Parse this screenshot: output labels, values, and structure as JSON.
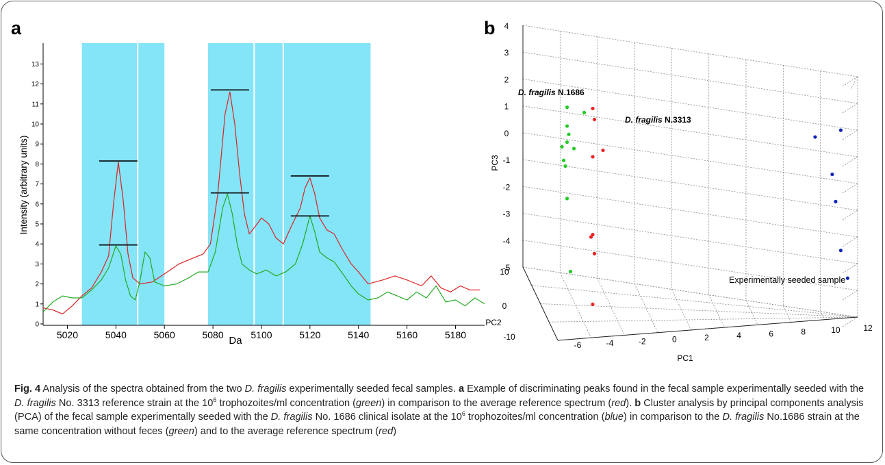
{
  "panel_a": {
    "label": "a",
    "xlabel": "Da",
    "ylabel": "Intensity (arbitrary units)",
    "x_ticks": [
      "5020",
      "5040",
      "5060",
      "5080",
      "5100",
      "5120",
      "5140",
      "5160",
      "5180"
    ],
    "y_ticks": [
      "0",
      "1",
      "2",
      "3",
      "4",
      "5",
      "6",
      "7",
      "8",
      "9",
      "10",
      "11",
      "12",
      "13"
    ]
  },
  "panel_b": {
    "label": "b",
    "pc3_label": "PC3",
    "pc2_label": "PC2",
    "pc1_label": "PC1",
    "pc3_ticks": [
      "4",
      "3",
      "2",
      "1",
      "0",
      "-1",
      "-2",
      "-3",
      "-4",
      "-5"
    ],
    "pc2_ticks": [
      "10",
      "0",
      "-10"
    ],
    "pc1_ticks": [
      "-6",
      "-4",
      "-2",
      "0",
      "2",
      "4",
      "6",
      "8",
      "10",
      "12"
    ],
    "annotation_1686_italic": "D. fragilis",
    "annotation_1686_rest": " N.1686",
    "annotation_3313_italic": "D. fragilis",
    "annotation_3313_rest": " N.3313",
    "annotation_seeded": "Experimentally seeded sample"
  },
  "chart_data": [
    {
      "type": "line",
      "panel": "a",
      "xlabel": "Da",
      "ylabel": "Intensity (arbitrary units)",
      "xlim": [
        5010,
        5192
      ],
      "ylim": [
        0,
        14
      ],
      "highlighted_ranges_da": [
        [
          5026,
          5060
        ],
        [
          5078,
          5145
        ]
      ],
      "series": [
        {
          "color": "#dd2222",
          "points": [
            [
              5010,
              0.8
            ],
            [
              5014,
              0.7
            ],
            [
              5018,
              0.5
            ],
            [
              5022,
              0.9
            ],
            [
              5026,
              1.4
            ],
            [
              5030,
              1.8
            ],
            [
              5034,
              2.6
            ],
            [
              5037,
              3.4
            ],
            [
              5039,
              6.0
            ],
            [
              5041,
              8.1
            ],
            [
              5043,
              6.2
            ],
            [
              5045,
              3.5
            ],
            [
              5047,
              2.3
            ],
            [
              5050,
              2.0
            ],
            [
              5055,
              2.1
            ],
            [
              5060,
              2.5
            ],
            [
              5066,
              3.0
            ],
            [
              5072,
              3.3
            ],
            [
              5076,
              3.5
            ],
            [
              5079,
              4.0
            ],
            [
              5082,
              6.5
            ],
            [
              5085,
              10.5
            ],
            [
              5087,
              11.6
            ],
            [
              5089,
              10.0
            ],
            [
              5091,
              7.5
            ],
            [
              5093,
              5.5
            ],
            [
              5095,
              4.5
            ],
            [
              5097,
              4.8
            ],
            [
              5100,
              5.3
            ],
            [
              5103,
              5.0
            ],
            [
              5106,
              4.3
            ],
            [
              5109,
              4.0
            ],
            [
              5112,
              4.8
            ],
            [
              5116,
              5.8
            ],
            [
              5118,
              6.8
            ],
            [
              5120,
              7.3
            ],
            [
              5122,
              6.5
            ],
            [
              5124,
              5.3
            ],
            [
              5127,
              4.7
            ],
            [
              5130,
              4.5
            ],
            [
              5133,
              3.8
            ],
            [
              5137,
              3.0
            ],
            [
              5140,
              2.6
            ],
            [
              5144,
              2.0
            ],
            [
              5150,
              2.2
            ],
            [
              5155,
              2.4
            ],
            [
              5160,
              2.2
            ],
            [
              5166,
              1.9
            ],
            [
              5170,
              2.4
            ],
            [
              5174,
              1.8
            ],
            [
              5178,
              1.6
            ],
            [
              5182,
              1.9
            ],
            [
              5186,
              1.7
            ],
            [
              5190,
              1.7
            ]
          ]
        },
        {
          "color": "#22aa22",
          "points": [
            [
              5010,
              0.6
            ],
            [
              5014,
              1.1
            ],
            [
              5018,
              1.4
            ],
            [
              5022,
              1.3
            ],
            [
              5026,
              1.3
            ],
            [
              5030,
              1.7
            ],
            [
              5034,
              2.2
            ],
            [
              5037,
              2.8
            ],
            [
              5040,
              3.9
            ],
            [
              5042,
              3.5
            ],
            [
              5044,
              2.2
            ],
            [
              5046,
              1.4
            ],
            [
              5048,
              1.2
            ],
            [
              5050,
              2.2
            ],
            [
              5052,
              3.6
            ],
            [
              5054,
              3.3
            ],
            [
              5056,
              2.1
            ],
            [
              5060,
              1.9
            ],
            [
              5065,
              2.0
            ],
            [
              5070,
              2.3
            ],
            [
              5074,
              2.6
            ],
            [
              5078,
              2.6
            ],
            [
              5081,
              3.6
            ],
            [
              5084,
              5.8
            ],
            [
              5086,
              6.5
            ],
            [
              5088,
              5.5
            ],
            [
              5090,
              4.0
            ],
            [
              5092,
              3.0
            ],
            [
              5095,
              2.7
            ],
            [
              5098,
              2.5
            ],
            [
              5102,
              2.7
            ],
            [
              5106,
              2.4
            ],
            [
              5110,
              2.6
            ],
            [
              5114,
              3.0
            ],
            [
              5117,
              4.0
            ],
            [
              5120,
              5.4
            ],
            [
              5122,
              4.6
            ],
            [
              5124,
              3.6
            ],
            [
              5127,
              3.3
            ],
            [
              5130,
              3.1
            ],
            [
              5133,
              2.6
            ],
            [
              5137,
              1.9
            ],
            [
              5140,
              1.5
            ],
            [
              5144,
              1.2
            ],
            [
              5148,
              1.3
            ],
            [
              5152,
              1.6
            ],
            [
              5156,
              1.4
            ],
            [
              5160,
              1.2
            ],
            [
              5164,
              1.6
            ],
            [
              5168,
              1.3
            ],
            [
              5172,
              1.9
            ],
            [
              5176,
              1.1
            ],
            [
              5180,
              1.2
            ],
            [
              5184,
              0.9
            ],
            [
              5188,
              1.3
            ],
            [
              5192,
              1.0
            ]
          ]
        }
      ],
      "peak_markers": [
        {
          "x": 5041,
          "y": 8.15
        },
        {
          "x": 5041,
          "y": 3.95
        },
        {
          "x": 5087,
          "y": 11.7
        },
        {
          "x": 5087,
          "y": 6.55
        },
        {
          "x": 5120,
          "y": 7.4
        },
        {
          "x": 5120,
          "y": 5.4
        }
      ]
    },
    {
      "type": "scatter",
      "panel": "b",
      "axes": [
        "PC1",
        "PC2",
        "PC3"
      ],
      "pc1_range": [
        -6,
        12
      ],
      "pc2_range": [
        -10,
        10
      ],
      "pc3_range": [
        -5,
        4
      ],
      "series": [
        {
          "color": "#22cc22",
          "points_pc1_pc3": [
            [
              -5.5,
              1.2
            ],
            [
              -4.5,
              1.1
            ],
            [
              -5.5,
              0.5
            ],
            [
              -5.4,
              0.2
            ],
            [
              -5.5,
              -0.1
            ],
            [
              -5.8,
              -0.3
            ],
            [
              -5.1,
              -0.3
            ],
            [
              -5.7,
              -0.8
            ],
            [
              -5.6,
              -1.0
            ],
            [
              -5.5,
              -2.2
            ],
            [
              -5.3,
              -4.9
            ]
          ]
        },
        {
          "color": "#ee2222",
          "points_pc1_pc3": [
            [
              -4.0,
              1.3
            ],
            [
              -3.9,
              0.9
            ],
            [
              -3.4,
              -0.2
            ],
            [
              -4.0,
              -0.5
            ],
            [
              -4.0,
              -3.4
            ],
            [
              -4.1,
              -3.5
            ],
            [
              -3.9,
              -4.1
            ],
            [
              -4.0,
              -6.0
            ]
          ]
        },
        {
          "color": "#1122bb",
          "points_pc1_pc3": [
            [
              9.0,
              1.5
            ],
            [
              10.5,
              1.9
            ],
            [
              10.0,
              0.2
            ],
            [
              10.2,
              -0.8
            ],
            [
              10.5,
              -2.6
            ],
            [
              10.9,
              -3.6
            ]
          ]
        }
      ]
    }
  ],
  "caption": {
    "fig_label": "Fig. 4",
    "part1": " Analysis of the spectra obtained from the two ",
    "species": "D. fragilis",
    "part2": " experimentally seeded fecal samples. ",
    "a_label": "a",
    "part3": " Example of discriminating peaks found in the fecal sample experimentally seeded with the ",
    "part4": " No. 3313 reference strain at the 10",
    "sup": "6",
    "part5": " trophozoites/ml concentration (",
    "green": "green",
    "part6": ") in comparison to the average reference spectrum (",
    "red": "red",
    "part7": "). ",
    "b_label": "b",
    "part8": " Cluster analysis by principal components analysis (PCA) of the fecal sample experimentally seeded with the ",
    "part9": " No. 1686 clinical isolate at the 10",
    "part10": " trophozoites/ml concentration (",
    "blue": "blue",
    "part11": ") in comparison to the ",
    "part12": " No.1686 strain at the same concentration without feces (",
    "part13": ") and to the average reference spectrum (",
    "part14": ")"
  }
}
